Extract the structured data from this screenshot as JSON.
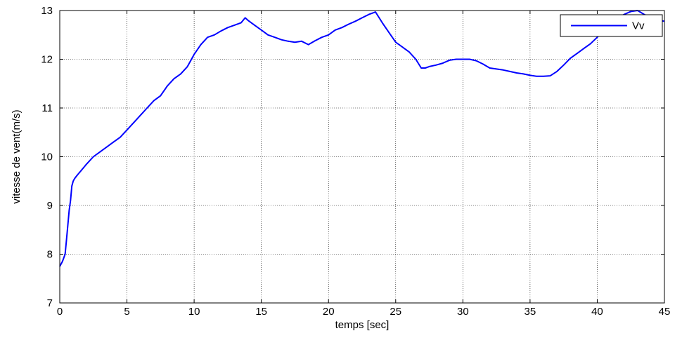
{
  "chart_data": {
    "type": "line",
    "title": "",
    "xlabel": "temps [sec]",
    "ylabel": "vitesse de vent(m/s)",
    "xlim": [
      0,
      45
    ],
    "ylim": [
      7,
      13
    ],
    "xticks": [
      0,
      5,
      10,
      15,
      20,
      25,
      30,
      35,
      40,
      45
    ],
    "yticks": [
      7,
      8,
      9,
      10,
      11,
      12,
      13
    ],
    "grid": true,
    "legend_position": "top-right",
    "series": [
      {
        "name": "Vv",
        "color": "#0000ff",
        "x": [
          0,
          0.2,
          0.4,
          0.5,
          0.6,
          0.7,
          0.8,
          0.9,
          1.0,
          1.1,
          1.3,
          1.6,
          2.0,
          2.5,
          3.0,
          3.5,
          4.0,
          4.5,
          5.0,
          5.5,
          6.0,
          6.5,
          7.0,
          7.5,
          8.0,
          8.5,
          9.0,
          9.5,
          10.0,
          10.5,
          11.0,
          11.5,
          12.0,
          12.5,
          13.0,
          13.5,
          13.8,
          14.0,
          14.5,
          15.0,
          15.5,
          16.0,
          16.5,
          17.0,
          17.5,
          18.0,
          18.5,
          19.0,
          19.5,
          20.0,
          20.5,
          21.0,
          21.5,
          22.0,
          22.5,
          23.0,
          23.5,
          24.0,
          24.5,
          25.0,
          25.5,
          26.0,
          26.5,
          26.9,
          27.2,
          27.5,
          28.0,
          28.5,
          29.0,
          29.5,
          30.0,
          30.5,
          31.0,
          31.5,
          32.0,
          32.5,
          33.0,
          33.5,
          34.0,
          34.5,
          35.0,
          35.5,
          36.0,
          36.5,
          37.0,
          37.5,
          38.0,
          38.5,
          39.0,
          39.5,
          40.0,
          40.5,
          41.0,
          41.5,
          42.0,
          42.5,
          43.0,
          43.5,
          44.0,
          44.5,
          45.0
        ],
        "y": [
          7.75,
          7.85,
          8.0,
          8.3,
          8.6,
          8.9,
          9.1,
          9.4,
          9.5,
          9.55,
          9.62,
          9.72,
          9.85,
          10.0,
          10.1,
          10.2,
          10.3,
          10.4,
          10.55,
          10.7,
          10.85,
          11.0,
          11.15,
          11.25,
          11.45,
          11.6,
          11.7,
          11.85,
          12.1,
          12.3,
          12.45,
          12.5,
          12.58,
          12.65,
          12.7,
          12.75,
          12.85,
          12.8,
          12.7,
          12.6,
          12.5,
          12.45,
          12.4,
          12.37,
          12.35,
          12.37,
          12.3,
          12.38,
          12.45,
          12.5,
          12.6,
          12.65,
          12.72,
          12.78,
          12.85,
          12.92,
          12.97,
          12.75,
          12.55,
          12.35,
          12.25,
          12.15,
          12.0,
          11.82,
          11.82,
          11.85,
          11.88,
          11.92,
          11.98,
          12.0,
          12.0,
          12.0,
          11.97,
          11.9,
          11.82,
          11.8,
          11.78,
          11.75,
          11.72,
          11.7,
          11.67,
          11.65,
          11.65,
          11.66,
          11.75,
          11.88,
          12.02,
          12.12,
          12.22,
          12.32,
          12.45,
          12.6,
          12.72,
          12.85,
          12.92,
          12.98,
          13.0,
          12.92,
          12.85,
          12.8,
          12.78
        ]
      }
    ]
  }
}
